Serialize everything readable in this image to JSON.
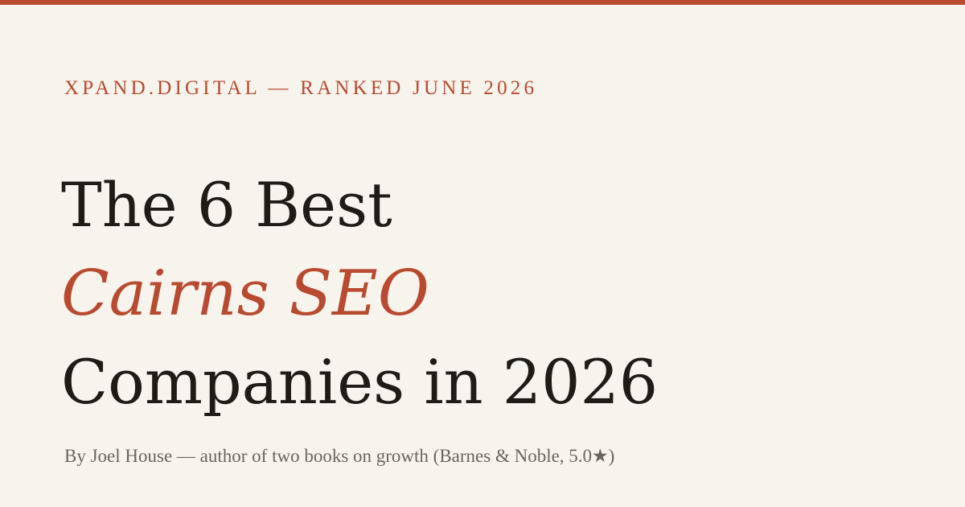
{
  "accent_color": "#b84a2f",
  "background_color": "#f7f3ed",
  "text_color": "#1f1b17",
  "kicker": "XPAND.DIGITAL — RANKED JUNE 2026",
  "headline": {
    "line1": "The 6 Best",
    "line2": "Cairns SEO",
    "line3": "Companies in 2026"
  },
  "byline": "By Joel House — author of two books on growth (Barnes & Noble, 5.0★)"
}
